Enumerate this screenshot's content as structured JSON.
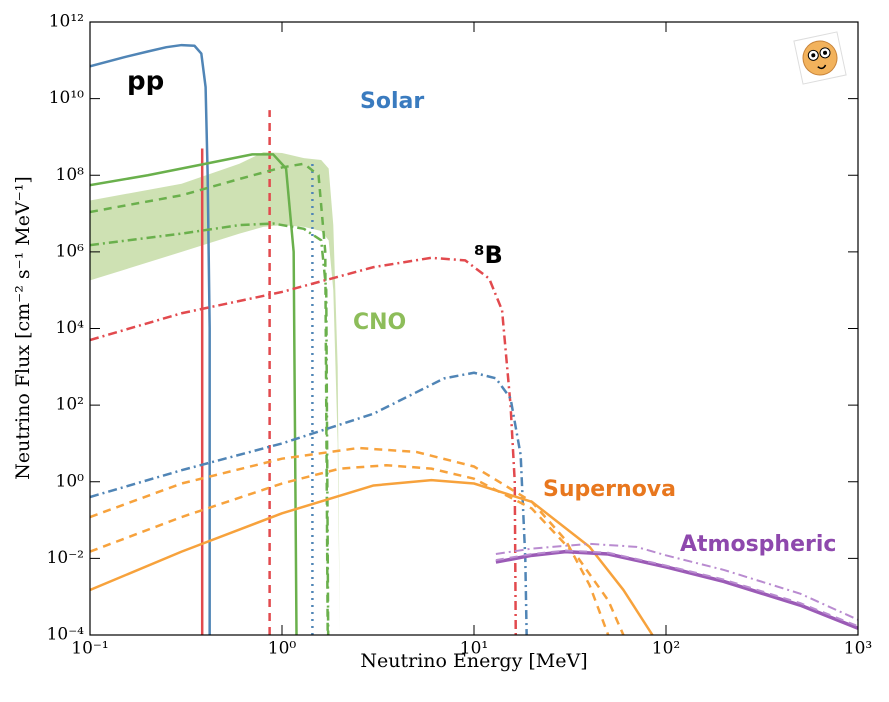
{
  "chart_data": {
    "type": "line",
    "xlabel": "Neutrino Energy [MeV]",
    "ylabel": "Neutrino Flux [cm⁻² s⁻¹ MeV⁻¹]",
    "xscale": "log",
    "yscale": "log",
    "xlim": [
      0.1,
      1000
    ],
    "ylim": [
      0.0001,
      1000000000000
    ],
    "xticks": [
      {
        "value": 0.1,
        "label": "10⁻¹"
      },
      {
        "value": 1,
        "label": "10⁰"
      },
      {
        "value": 10,
        "label": "10¹"
      },
      {
        "value": 100,
        "label": "10²"
      },
      {
        "value": 1000,
        "label": "10³"
      }
    ],
    "yticks": [
      {
        "value": 0.0001,
        "label": "10⁻⁴"
      },
      {
        "value": 0.01,
        "label": "10⁻²"
      },
      {
        "value": 1,
        "label": "10⁰"
      },
      {
        "value": 100,
        "label": "10²"
      },
      {
        "value": 10000,
        "label": "10⁴"
      },
      {
        "value": 1000000,
        "label": "10⁶"
      },
      {
        "value": 100000000,
        "label": "10⁸"
      },
      {
        "value": 10000000000,
        "label": "10¹⁰"
      },
      {
        "value": 1000000000000,
        "label": "10¹²"
      }
    ],
    "annotations": [
      {
        "text": "pp",
        "color": "#000000"
      },
      {
        "text": "Solar",
        "color": "#3a7bbf"
      },
      {
        "text": "⁸B",
        "color": "#000000"
      },
      {
        "text": "CNO",
        "color": "#8dbd5a"
      },
      {
        "text": "Supernova",
        "color": "#e8771e"
      },
      {
        "text": "Atmospheric",
        "color": "#8e48ad"
      }
    ],
    "bands": [
      {
        "color": "#c6dca6",
        "x": [
          0.1,
          0.3,
          0.6,
          0.8,
          1.0,
          1.3,
          1.6,
          1.75,
          1.85,
          1.95,
          2.0
        ],
        "upper": [
          22000000.0,
          60000000.0,
          200000000.0,
          400000000.0,
          380000000.0,
          280000000.0,
          250000000.0,
          150000000.0,
          5000000.0,
          1000.0,
          0.0001
        ],
        "lower": [
          180000.0,
          1000000.0,
          3000000.0,
          4500000.0,
          5000000.0,
          4500000.0,
          3500000.0,
          2000000.0,
          100000.0,
          10.0,
          0.0001
        ]
      }
    ],
    "series": [
      {
        "color": "#5085b6",
        "dash": "solid",
        "width": 2.5,
        "x": [
          0.1,
          0.15,
          0.2,
          0.25,
          0.3,
          0.35,
          0.38,
          0.4,
          0.41,
          0.42,
          0.42
        ],
        "values": [
          70000000000.0,
          120000000000.0,
          170000000000.0,
          220000000000.0,
          250000000000.0,
          240000000000.0,
          150000000000.0,
          20000000000.0,
          100000000.0,
          10000.0,
          0.0001
        ]
      },
      {
        "color": "#e24a4e",
        "dash": "solid",
        "width": 2.5,
        "x": [
          0.384,
          0.384
        ],
        "values": [
          0.0001,
          500000000.0
        ]
      },
      {
        "color": "#e24a4e",
        "dash": "dashed",
        "width": 2.5,
        "x": [
          0.862,
          0.862
        ],
        "values": [
          0.0001,
          5000000000.0
        ]
      },
      {
        "color": "#5085b6",
        "dash": "dotted",
        "width": 2.5,
        "x": [
          1.44,
          1.44
        ],
        "values": [
          0.0001,
          200000000.0
        ]
      },
      {
        "color": "#6ab04c",
        "dash": "solid",
        "width": 2.5,
        "x": [
          0.1,
          0.2,
          0.4,
          0.7,
          0.9,
          1.05,
          1.15,
          1.19
        ],
        "values": [
          55000000.0,
          100000000.0,
          200000000.0,
          350000000.0,
          350000000.0,
          150000000.0,
          1000000.0,
          0.0001
        ]
      },
      {
        "color": "#6ab04c",
        "dash": "dashed",
        "width": 2.5,
        "x": [
          0.1,
          0.3,
          0.6,
          1.0,
          1.3,
          1.55,
          1.68,
          1.73
        ],
        "values": [
          11000000.0,
          30000000.0,
          80000000.0,
          160000000.0,
          200000000.0,
          100000000.0,
          1000000.0,
          0.0001
        ]
      },
      {
        "color": "#6ab04c",
        "dash": "dashdot",
        "width": 2.5,
        "x": [
          0.1,
          0.3,
          0.6,
          0.9,
          1.3,
          1.6,
          1.7,
          1.74
        ],
        "values": [
          1500000.0,
          3000000.0,
          5000000.0,
          5500000.0,
          4000000.0,
          2000000.0,
          100000.0,
          0.0001
        ]
      },
      {
        "color": "#e24a4e",
        "dash": "dashdot",
        "width": 2.5,
        "x": [
          0.1,
          0.3,
          1,
          3,
          6,
          9,
          12,
          14,
          15.5,
          16.3,
          16.5
        ],
        "values": [
          5000.0,
          25000.0,
          90000.0,
          400000.0,
          700000.0,
          600000.0,
          200000.0,
          30000.0,
          100.0,
          1,
          0.0001
        ]
      },
      {
        "color": "#5085b6",
        "dash": "dashdot",
        "width": 2.5,
        "x": [
          0.1,
          0.3,
          1,
          3,
          7,
          10,
          13,
          15.5,
          17.5,
          18.5,
          18.8
        ],
        "values": [
          0.4,
          2,
          10,
          60,
          500,
          700,
          500,
          150,
          5,
          0.01,
          0.0001
        ]
      },
      {
        "color": "#f7a23c",
        "dash": "solid",
        "width": 2.5,
        "x": [
          0.1,
          0.3,
          1,
          3,
          6,
          10,
          20,
          40,
          60,
          85
        ],
        "values": [
          0.0015,
          0.015,
          0.15,
          0.8,
          1.1,
          0.9,
          0.3,
          0.02,
          0.0015,
          0.0001
        ]
      },
      {
        "color": "#f7a23c",
        "dash": "dashed",
        "width": 2.5,
        "x": [
          0.1,
          0.3,
          1,
          2,
          3.5,
          6,
          10,
          20,
          35,
          50,
          60
        ],
        "values": [
          0.015,
          0.12,
          0.9,
          2.2,
          2.7,
          2.2,
          1.2,
          0.2,
          0.01,
          0.0008,
          0.0001
        ]
      },
      {
        "color": "#f7a23c",
        "dash": "dashed",
        "width": 2.5,
        "x": [
          0.1,
          0.3,
          1,
          2.5,
          5,
          10,
          20,
          30,
          40,
          50
        ],
        "values": [
          0.12,
          0.9,
          4,
          7.6,
          6,
          2.5,
          0.3,
          0.03,
          0.002,
          0.0001
        ]
      },
      {
        "color": "#9b5bb6",
        "dash": "solid",
        "width": 3.5,
        "x": [
          13,
          20,
          30,
          50,
          100,
          200,
          500,
          1000
        ],
        "values": [
          0.008,
          0.012,
          0.015,
          0.013,
          0.006,
          0.0025,
          0.0006,
          0.00015
        ]
      },
      {
        "color": "#b98bd0",
        "dash": "dashed",
        "width": 2,
        "x": [
          13,
          20,
          30,
          50,
          100,
          200,
          500,
          1000
        ],
        "values": [
          0.009,
          0.013,
          0.016,
          0.014,
          0.0065,
          0.0028,
          0.00068,
          0.00017
        ]
      },
      {
        "color": "#b98bd0",
        "dash": "dashdot",
        "width": 2,
        "x": [
          13,
          20,
          40,
          70,
          100,
          200,
          500,
          1000
        ],
        "values": [
          0.013,
          0.018,
          0.024,
          0.02,
          0.012,
          0.005,
          0.0012,
          0.00025
        ]
      }
    ]
  }
}
